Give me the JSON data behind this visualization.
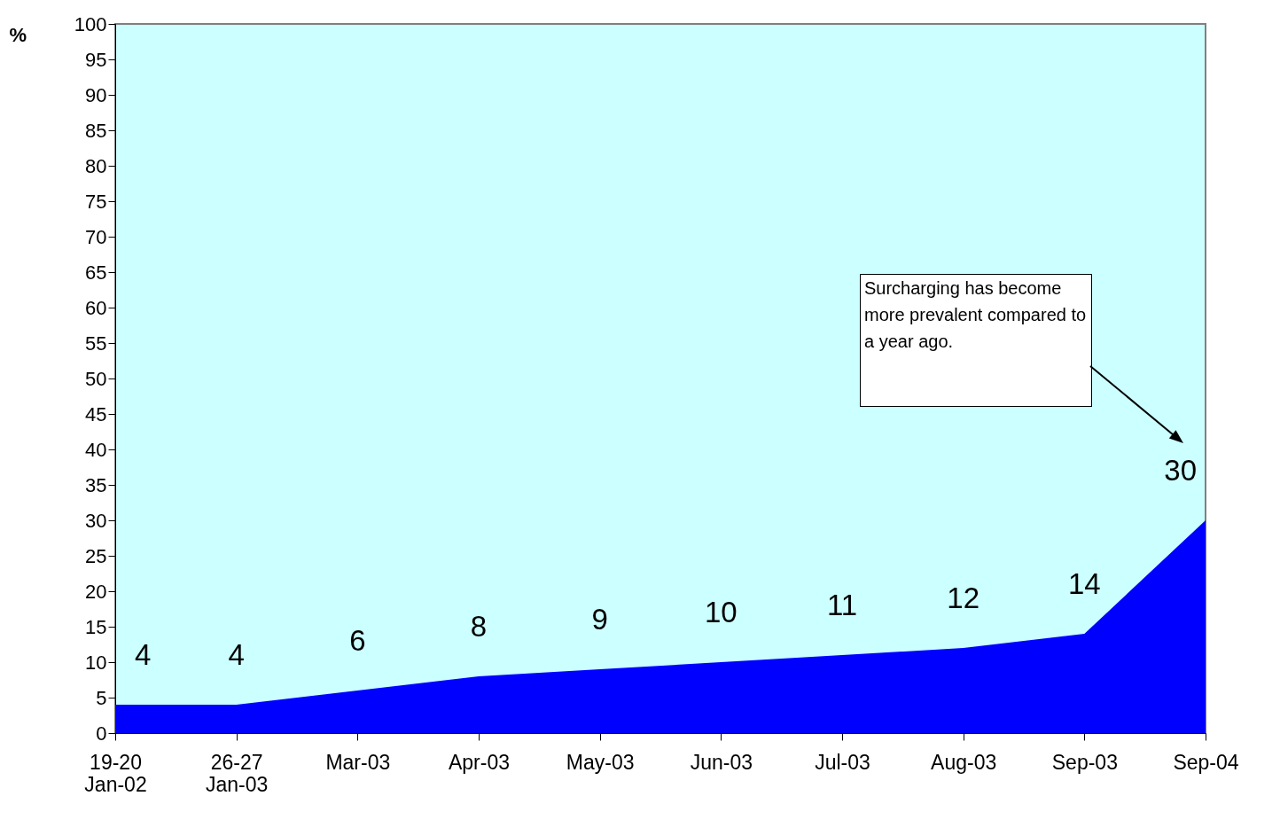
{
  "chart_data": {
    "type": "area",
    "ylabel": "%",
    "categories": [
      "19-20 Jan-02",
      "26-27 Jan-03",
      "Mar-03",
      "Apr-03",
      "May-03",
      "Jun-03",
      "Jul-03",
      "Aug-03",
      "Sep-03",
      "Sep-04"
    ],
    "series": [
      {
        "color": "#0000ff",
        "values": [
          4,
          4,
          6,
          8,
          9,
          10,
          11,
          12,
          14,
          30
        ]
      }
    ],
    "ylim": [
      0,
      100
    ],
    "yticks": [
      0,
      5,
      10,
      15,
      20,
      25,
      30,
      35,
      40,
      45,
      50,
      55,
      60,
      65,
      70,
      75,
      80,
      85,
      90,
      95,
      100
    ],
    "data_labels": true,
    "annotations": [
      "Surcharging has become more prevalent compared to a year ago."
    ]
  }
}
